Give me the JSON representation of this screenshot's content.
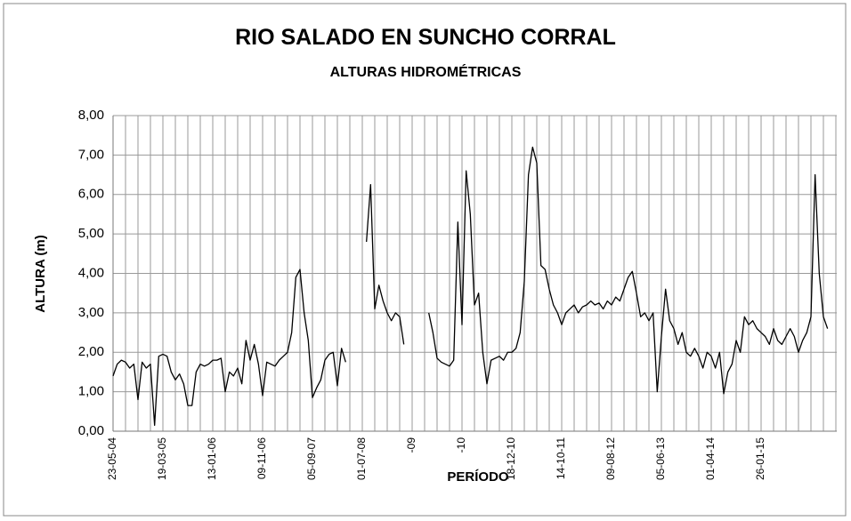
{
  "chart_data": {
    "type": "line",
    "title": "RIO SALADO EN SUNCHO CORRAL",
    "subtitle": "ALTURAS HIDROMÉTRICAS",
    "y_label": "ALTURA (m)",
    "x_label": "PERÍODO",
    "grid": true,
    "categories": [
      "23-05-04",
      null,
      null,
      null,
      null,
      null,
      null,
      null,
      null,
      null,
      null,
      null,
      "19-03-05",
      null,
      null,
      null,
      null,
      null,
      null,
      null,
      null,
      null,
      null,
      null,
      "13-01-06",
      null,
      null,
      null,
      null,
      null,
      null,
      null,
      null,
      null,
      null,
      null,
      "09-11-06",
      null,
      null,
      null,
      null,
      null,
      null,
      null,
      null,
      null,
      null,
      null,
      "05-09-07",
      null,
      null,
      null,
      null,
      null,
      null,
      null,
      null,
      null,
      null,
      null,
      "01-07-08",
      null,
      null,
      null,
      null,
      null,
      null,
      null,
      null,
      null,
      null,
      null,
      "-09",
      null,
      null,
      null,
      null,
      null,
      null,
      null,
      null,
      null,
      null,
      null,
      "-10",
      null,
      null,
      null,
      null,
      null,
      null,
      null,
      null,
      null,
      null,
      null,
      "18-12-10",
      null,
      null,
      null,
      null,
      null,
      null,
      null,
      null,
      null,
      null,
      null,
      "14-10-11",
      null,
      null,
      null,
      null,
      null,
      null,
      null,
      null,
      null,
      null,
      null,
      "09-08-12",
      null,
      null,
      null,
      null,
      null,
      null,
      null,
      null,
      null,
      null,
      null,
      "05-06-13",
      null,
      null,
      null,
      null,
      null,
      null,
      null,
      null,
      null,
      null,
      null,
      "01-04-14",
      null,
      null,
      null,
      null,
      null,
      null,
      null,
      null,
      null,
      null,
      null,
      "26-01-15",
      null,
      null,
      null,
      null,
      null,
      null,
      null,
      null,
      null,
      null,
      null,
      null,
      null,
      null,
      null,
      null
    ],
    "series": [
      {
        "name": "ALTURA",
        "color": "#000000",
        "values": [
          1.4,
          1.7,
          1.8,
          1.75,
          1.6,
          1.7,
          0.8,
          1.75,
          1.6,
          1.7,
          0.15,
          1.9,
          1.95,
          1.9,
          1.5,
          1.3,
          1.45,
          1.2,
          0.65,
          0.65,
          1.5,
          1.7,
          1.65,
          1.7,
          1.8,
          1.8,
          1.85,
          1.0,
          1.5,
          1.4,
          1.6,
          1.2,
          2.3,
          1.8,
          2.2,
          1.7,
          0.9,
          1.75,
          1.7,
          1.65,
          1.8,
          1.9,
          2.0,
          2.5,
          3.9,
          4.1,
          3.0,
          2.3,
          0.85,
          1.1,
          1.3,
          1.8,
          1.95,
          2.0,
          1.15,
          2.1,
          1.75,
          null,
          null,
          null,
          null,
          4.8,
          6.25,
          3.1,
          3.7,
          3.3,
          3.0,
          2.8,
          3.0,
          2.9,
          2.2,
          null,
          null,
          null,
          null,
          null,
          3.0,
          2.5,
          1.85,
          1.75,
          1.7,
          1.65,
          1.8,
          5.3,
          2.7,
          6.6,
          5.5,
          3.2,
          3.5,
          2.0,
          1.2,
          1.8,
          1.85,
          1.9,
          1.8,
          2.0,
          2.0,
          2.1,
          2.5,
          3.8,
          6.5,
          7.2,
          6.8,
          4.2,
          4.1,
          3.6,
          3.2,
          3.0,
          2.7,
          3.0,
          3.1,
          3.2,
          3.0,
          3.15,
          3.2,
          3.3,
          3.2,
          3.25,
          3.1,
          3.3,
          3.2,
          3.4,
          3.3,
          3.6,
          3.9,
          4.05,
          3.5,
          2.9,
          3.0,
          2.8,
          3.0,
          1.0,
          2.4,
          3.6,
          2.8,
          2.6,
          2.2,
          2.5,
          2.0,
          1.9,
          2.1,
          1.9,
          1.6,
          2.0,
          1.9,
          1.6,
          2.0,
          0.95,
          1.5,
          1.7,
          2.3,
          2.0,
          2.9,
          2.7,
          2.8,
          2.6,
          2.5,
          2.4,
          2.2,
          2.6,
          2.3,
          2.2,
          2.4,
          2.6,
          2.4,
          2.0,
          2.3,
          2.5,
          2.9,
          6.5,
          4.0,
          2.9,
          2.6
        ]
      }
    ],
    "ylim": [
      0,
      8
    ],
    "yticks": [
      {
        "value": 0,
        "label": "0,00"
      },
      {
        "value": 1,
        "label": "1,00"
      },
      {
        "value": 2,
        "label": "2,00"
      },
      {
        "value": 3,
        "label": "3,00"
      },
      {
        "value": 4,
        "label": "4,00"
      },
      {
        "value": 5,
        "label": "5,00"
      },
      {
        "value": 6,
        "label": "6,00"
      },
      {
        "value": 7,
        "label": "7,00"
      },
      {
        "value": 8,
        "label": "8,00"
      }
    ]
  }
}
